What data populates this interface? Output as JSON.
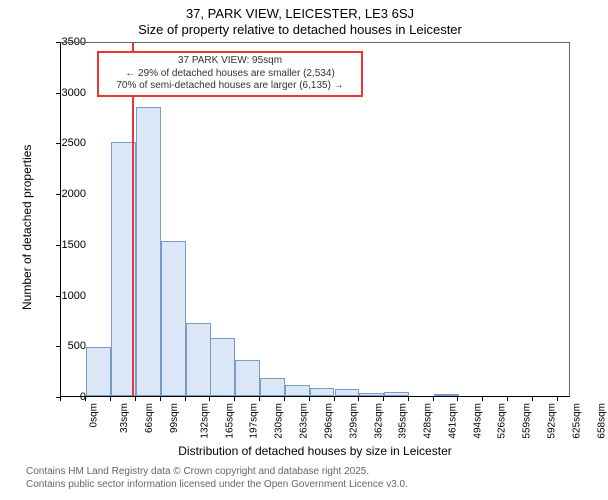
{
  "titles": {
    "line1": "37, PARK VIEW, LEICESTER, LE3 6SJ",
    "line2": "Size of property relative to detached houses in Leicester"
  },
  "axes": {
    "xlabel": "Distribution of detached houses by size in Leicester",
    "ylabel": "Number of detached properties"
  },
  "footer": {
    "line1": "Contains HM Land Registry data © Crown copyright and database right 2025.",
    "line2": "Contains public sector information licensed under the Open Government Licence v3.0."
  },
  "chart": {
    "type": "histogram",
    "background_color": "#ffffff",
    "bar_fill": "#dbe7f6",
    "bar_stroke": "#7a9bc4",
    "axis_color": "#000000",
    "border_color": "#666666",
    "xlim": [
      0,
      675
    ],
    "ylim": [
      0,
      3500
    ],
    "ytick_step": 500,
    "yticks": [
      0,
      500,
      1000,
      1500,
      2000,
      2500,
      3000,
      3500
    ],
    "xticks": [
      0,
      33,
      66,
      99,
      132,
      165,
      197,
      230,
      263,
      296,
      329,
      362,
      395,
      428,
      461,
      494,
      526,
      559,
      592,
      625,
      658
    ],
    "xtick_unit": "sqm",
    "label_fontsize": 12,
    "tick_fontsize": 11,
    "bin_width": 33,
    "bins": [
      {
        "start": 0,
        "count": 0,
        "label": "0sqm"
      },
      {
        "start": 33,
        "count": 480,
        "label": "33sqm"
      },
      {
        "start": 66,
        "count": 2500,
        "label": "66sqm"
      },
      {
        "start": 99,
        "count": 2850,
        "label": "99sqm"
      },
      {
        "start": 132,
        "count": 1530,
        "label": "132sqm"
      },
      {
        "start": 165,
        "count": 720,
        "label": "165sqm"
      },
      {
        "start": 197,
        "count": 570,
        "label": "197sqm"
      },
      {
        "start": 230,
        "count": 360,
        "label": "230sqm"
      },
      {
        "start": 263,
        "count": 180,
        "label": "263sqm"
      },
      {
        "start": 296,
        "count": 110,
        "label": "296sqm"
      },
      {
        "start": 329,
        "count": 80,
        "label": "329sqm"
      },
      {
        "start": 362,
        "count": 70,
        "label": "362sqm"
      },
      {
        "start": 395,
        "count": 30,
        "label": "395sqm"
      },
      {
        "start": 428,
        "count": 40,
        "label": "428sqm"
      },
      {
        "start": 461,
        "count": 0,
        "label": "461sqm"
      },
      {
        "start": 494,
        "count": 10,
        "label": "494sqm"
      },
      {
        "start": 526,
        "count": 0,
        "label": "526sqm"
      },
      {
        "start": 559,
        "count": 0,
        "label": "559sqm"
      },
      {
        "start": 592,
        "count": 0,
        "label": "592sqm"
      },
      {
        "start": 625,
        "count": 0,
        "label": "625sqm"
      },
      {
        "start": 658,
        "count": 0,
        "label": "658sqm"
      }
    ]
  },
  "marker": {
    "x_value": 95,
    "color": "#e53935",
    "box": {
      "line1": "37 PARK VIEW: 95sqm",
      "line2": "← 29% of detached houses are smaller (2,534)",
      "line3": "70% of semi-detached houses are larger (6,135) →"
    }
  }
}
